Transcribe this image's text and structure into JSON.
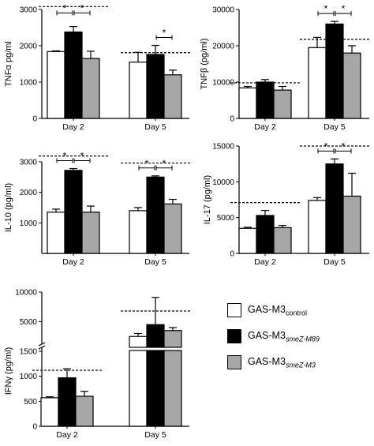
{
  "chart_data": [
    {
      "type": "bar",
      "ylabel": "TNFα pg/ml",
      "categories": [
        "Day 2",
        "Day 5"
      ],
      "ylim": [
        0,
        3000
      ],
      "yticks": [
        0,
        1000,
        2000,
        3000
      ],
      "series": [
        {
          "name": "GAS-M3control",
          "values": [
            1840,
            1550
          ],
          "errors": [
            20,
            270
          ]
        },
        {
          "name": "GAS-M3smeZ-M89",
          "values": [
            2380,
            1760
          ],
          "errors": [
            150,
            250
          ]
        },
        {
          "name": "GAS-M3smeZ-M3",
          "values": [
            1650,
            1200
          ],
          "errors": [
            200,
            130
          ]
        }
      ],
      "reference_lines": [
        3080,
        1810
      ],
      "significance": [
        {
          "category": "Day 2",
          "pairs": [
            [
              0,
              1
            ],
            [
              1,
              2
            ]
          ]
        },
        {
          "category": "Day 5",
          "pairs": [
            [
              1,
              2
            ]
          ]
        }
      ],
      "significance_label": "*"
    },
    {
      "type": "bar",
      "ylabel": "TNFβ (pg/ml)",
      "categories": [
        "Day 2",
        "Day 5"
      ],
      "ylim": [
        0,
        30000
      ],
      "yticks": [
        0,
        10000,
        20000,
        30000
      ],
      "series": [
        {
          "name": "GAS-M3control",
          "values": [
            8400,
            19500
          ],
          "errors": [
            400,
            2800
          ]
        },
        {
          "name": "GAS-M3smeZ-M89",
          "values": [
            10000,
            26000
          ],
          "errors": [
            700,
            700
          ]
        },
        {
          "name": "GAS-M3smeZ-M3",
          "values": [
            7800,
            18000
          ],
          "errors": [
            1000,
            2000
          ]
        }
      ],
      "reference_lines": [
        9800,
        21800
      ],
      "significance": [
        {
          "category": "Day 5",
          "pairs": [
            [
              0,
              1
            ],
            [
              1,
              2
            ]
          ]
        }
      ],
      "significance_label": "*"
    },
    {
      "type": "bar",
      "ylabel": "IL-10 (pg/ml)",
      "categories": [
        "Day 2",
        "Day 5"
      ],
      "ylim": [
        0,
        3000
      ],
      "yticks": [
        1000,
        2000,
        3000
      ],
      "series": [
        {
          "name": "GAS-M3control",
          "values": [
            1350,
            1400
          ],
          "errors": [
            100,
            100
          ]
        },
        {
          "name": "GAS-M3smeZ-M89",
          "values": [
            2720,
            2500
          ],
          "errors": [
            60,
            40
          ]
        },
        {
          "name": "GAS-M3smeZ-M3",
          "values": [
            1350,
            1620
          ],
          "errors": [
            200,
            150
          ]
        }
      ],
      "reference_lines": [
        3190,
        2960
      ],
      "significance": [
        {
          "category": "Day 2",
          "pairs": [
            [
              0,
              1
            ],
            [
              1,
              2
            ]
          ]
        },
        {
          "category": "Day 5",
          "pairs": [
            [
              0,
              1
            ],
            [
              1,
              2
            ]
          ]
        }
      ],
      "significance_label": "*"
    },
    {
      "type": "bar",
      "ylabel": "IL-17 (pg/ml)",
      "categories": [
        "Day 2",
        "Day 5"
      ],
      "ylim": [
        0,
        15000
      ],
      "yticks": [
        0,
        5000,
        10000,
        15000
      ],
      "series": [
        {
          "name": "GAS-M3control",
          "values": [
            3500,
            7400
          ],
          "errors": [
            150,
            400
          ]
        },
        {
          "name": "GAS-M3smeZ-M89",
          "values": [
            5300,
            12500
          ],
          "errors": [
            700,
            700
          ]
        },
        {
          "name": "GAS-M3smeZ-M3",
          "values": [
            3600,
            8000
          ],
          "errors": [
            300,
            3200
          ]
        }
      ],
      "reference_lines": [
        7100,
        15000
      ],
      "significance": [
        {
          "category": "Day 5",
          "pairs": [
            [
              0,
              1
            ],
            [
              1,
              2
            ]
          ]
        }
      ],
      "significance_label": "*"
    },
    {
      "type": "bar",
      "ylabel": "IFNγ (pg/ml)",
      "categories": [
        "Day 2",
        "Day 5"
      ],
      "yscale": "broken",
      "ylim": [
        0,
        10000
      ],
      "yticks": [
        0,
        500,
        1000,
        1500,
        5000,
        10000
      ],
      "series": [
        {
          "name": "GAS-M3control",
          "values": [
            570,
            2500
          ],
          "errors": [
            20,
            500
          ]
        },
        {
          "name": "GAS-M3smeZ-M89",
          "values": [
            970,
            4500
          ],
          "errors": [
            180,
            4600
          ]
        },
        {
          "name": "GAS-M3smeZ-M3",
          "values": [
            600,
            3500
          ],
          "errors": [
            100,
            500
          ]
        }
      ],
      "reference_lines": [
        1120,
        6800
      ]
    }
  ],
  "legend": {
    "items": [
      {
        "base": "GAS-M3",
        "sub": "control",
        "italic": false,
        "color": "#ffffff"
      },
      {
        "base": "GAS-M3",
        "sub": "smeZ-M89",
        "italic": true,
        "color": "#000000"
      },
      {
        "base": "GAS-M3",
        "sub": "smeZ-M3",
        "italic": true,
        "color": "#a6a6a6"
      }
    ]
  },
  "colors": {
    "control": "#ffffff",
    "m89": "#000000",
    "m3": "#a6a6a6",
    "axis": "#000000"
  }
}
